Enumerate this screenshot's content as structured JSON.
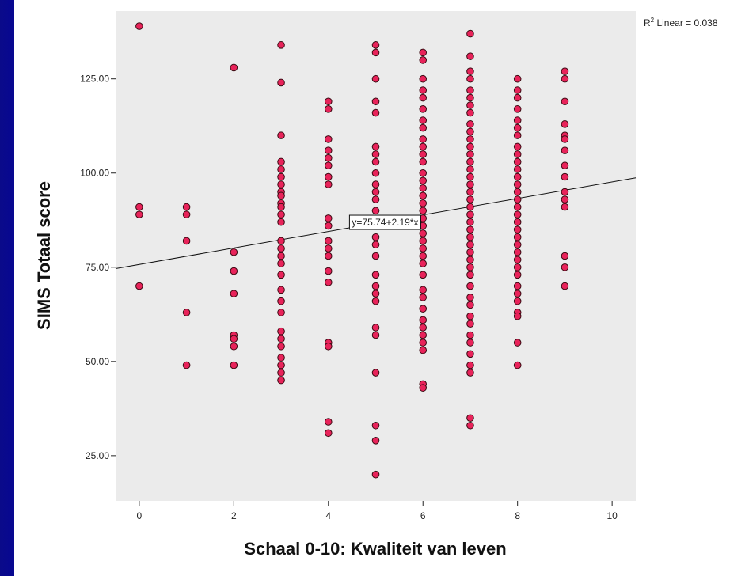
{
  "chart_data": {
    "type": "scatter",
    "title": "",
    "xlabel": "Schaal 0-10: Kwaliteit van leven",
    "ylabel": "SIMS Totaal score",
    "xlim": [
      -0.5,
      10.5
    ],
    "ylim": [
      13,
      143
    ],
    "xticks": [
      0,
      2,
      4,
      6,
      8,
      10
    ],
    "xtick_labels": [
      "0",
      "2",
      "4",
      "6",
      "8",
      "10"
    ],
    "yticks": [
      25,
      50,
      75,
      100,
      125
    ],
    "ytick_labels": [
      "25.00",
      "50.00",
      "75.00",
      "100.00",
      "125.00"
    ],
    "grid": false,
    "marker_color": "#e8235a",
    "fit_line": {
      "intercept": 75.74,
      "slope": 2.19,
      "label": "y=75.74+2.19*x",
      "label_x": 5.2
    },
    "r2_label": {
      "prefix": "R",
      "sup": "2",
      "text": " Linear = 0.038"
    },
    "series": [
      {
        "points": [
          [
            0,
            139
          ],
          [
            0,
            91
          ],
          [
            0,
            89
          ],
          [
            0,
            70
          ],
          [
            1,
            91
          ],
          [
            1,
            89
          ],
          [
            1,
            82
          ],
          [
            1,
            63
          ],
          [
            1,
            49
          ],
          [
            2,
            128
          ],
          [
            2,
            79
          ],
          [
            2,
            74
          ],
          [
            2,
            68
          ],
          [
            2,
            57
          ],
          [
            2,
            56
          ],
          [
            2,
            54
          ],
          [
            2,
            49
          ],
          [
            3,
            134
          ],
          [
            3,
            124
          ],
          [
            3,
            110
          ],
          [
            3,
            103
          ],
          [
            3,
            101
          ],
          [
            3,
            99
          ],
          [
            3,
            97
          ],
          [
            3,
            95
          ],
          [
            3,
            94
          ],
          [
            3,
            92
          ],
          [
            3,
            91
          ],
          [
            3,
            89
          ],
          [
            3,
            87
          ],
          [
            3,
            82
          ],
          [
            3,
            80
          ],
          [
            3,
            78
          ],
          [
            3,
            76
          ],
          [
            3,
            73
          ],
          [
            3,
            69
          ],
          [
            3,
            66
          ],
          [
            3,
            63
          ],
          [
            3,
            58
          ],
          [
            3,
            56
          ],
          [
            3,
            54
          ],
          [
            3,
            51
          ],
          [
            3,
            49
          ],
          [
            3,
            47
          ],
          [
            3,
            45
          ],
          [
            4,
            119
          ],
          [
            4,
            117
          ],
          [
            4,
            109
          ],
          [
            4,
            106
          ],
          [
            4,
            104
          ],
          [
            4,
            102
          ],
          [
            4,
            99
          ],
          [
            4,
            97
          ],
          [
            4,
            88
          ],
          [
            4,
            86
          ],
          [
            4,
            82
          ],
          [
            4,
            80
          ],
          [
            4,
            78
          ],
          [
            4,
            74
          ],
          [
            4,
            71
          ],
          [
            4,
            55
          ],
          [
            4,
            54
          ],
          [
            4,
            34
          ],
          [
            4,
            31
          ],
          [
            5,
            134
          ],
          [
            5,
            132
          ],
          [
            5,
            125
          ],
          [
            5,
            119
          ],
          [
            5,
            116
          ],
          [
            5,
            107
          ],
          [
            5,
            105
          ],
          [
            5,
            103
          ],
          [
            5,
            100
          ],
          [
            5,
            97
          ],
          [
            5,
            95
          ],
          [
            5,
            93
          ],
          [
            5,
            90
          ],
          [
            5,
            87
          ],
          [
            5,
            83
          ],
          [
            5,
            81
          ],
          [
            5,
            78
          ],
          [
            5,
            73
          ],
          [
            5,
            70
          ],
          [
            5,
            68
          ],
          [
            5,
            66
          ],
          [
            5,
            59
          ],
          [
            5,
            57
          ],
          [
            5,
            47
          ],
          [
            5,
            33
          ],
          [
            5,
            29
          ],
          [
            5,
            20
          ],
          [
            6,
            132
          ],
          [
            6,
            130
          ],
          [
            6,
            125
          ],
          [
            6,
            122
          ],
          [
            6,
            120
          ],
          [
            6,
            117
          ],
          [
            6,
            114
          ],
          [
            6,
            112
          ],
          [
            6,
            109
          ],
          [
            6,
            107
          ],
          [
            6,
            105
          ],
          [
            6,
            103
          ],
          [
            6,
            100
          ],
          [
            6,
            98
          ],
          [
            6,
            96
          ],
          [
            6,
            94
          ],
          [
            6,
            92
          ],
          [
            6,
            90
          ],
          [
            6,
            88
          ],
          [
            6,
            86
          ],
          [
            6,
            84
          ],
          [
            6,
            82
          ],
          [
            6,
            80
          ],
          [
            6,
            78
          ],
          [
            6,
            76
          ],
          [
            6,
            73
          ],
          [
            6,
            69
          ],
          [
            6,
            67
          ],
          [
            6,
            64
          ],
          [
            6,
            61
          ],
          [
            6,
            59
          ],
          [
            6,
            57
          ],
          [
            6,
            55
          ],
          [
            6,
            53
          ],
          [
            6,
            44
          ],
          [
            6,
            43
          ],
          [
            7,
            137
          ],
          [
            7,
            131
          ],
          [
            7,
            127
          ],
          [
            7,
            125
          ],
          [
            7,
            122
          ],
          [
            7,
            120
          ],
          [
            7,
            118
          ],
          [
            7,
            116
          ],
          [
            7,
            113
          ],
          [
            7,
            111
          ],
          [
            7,
            109
          ],
          [
            7,
            107
          ],
          [
            7,
            105
          ],
          [
            7,
            103
          ],
          [
            7,
            101
          ],
          [
            7,
            99
          ],
          [
            7,
            97
          ],
          [
            7,
            95
          ],
          [
            7,
            93
          ],
          [
            7,
            91
          ],
          [
            7,
            89
          ],
          [
            7,
            87
          ],
          [
            7,
            85
          ],
          [
            7,
            83
          ],
          [
            7,
            81
          ],
          [
            7,
            79
          ],
          [
            7,
            77
          ],
          [
            7,
            75
          ],
          [
            7,
            73
          ],
          [
            7,
            70
          ],
          [
            7,
            67
          ],
          [
            7,
            65
          ],
          [
            7,
            62
          ],
          [
            7,
            60
          ],
          [
            7,
            57
          ],
          [
            7,
            55
          ],
          [
            7,
            52
          ],
          [
            7,
            49
          ],
          [
            7,
            47
          ],
          [
            7,
            35
          ],
          [
            7,
            33
          ],
          [
            8,
            125
          ],
          [
            8,
            122
          ],
          [
            8,
            120
          ],
          [
            8,
            117
          ],
          [
            8,
            114
          ],
          [
            8,
            112
          ],
          [
            8,
            110
          ],
          [
            8,
            107
          ],
          [
            8,
            105
          ],
          [
            8,
            103
          ],
          [
            8,
            101
          ],
          [
            8,
            99
          ],
          [
            8,
            97
          ],
          [
            8,
            95
          ],
          [
            8,
            93
          ],
          [
            8,
            91
          ],
          [
            8,
            89
          ],
          [
            8,
            87
          ],
          [
            8,
            85
          ],
          [
            8,
            83
          ],
          [
            8,
            81
          ],
          [
            8,
            79
          ],
          [
            8,
            77
          ],
          [
            8,
            75
          ],
          [
            8,
            73
          ],
          [
            8,
            70
          ],
          [
            8,
            68
          ],
          [
            8,
            66
          ],
          [
            8,
            63
          ],
          [
            8,
            62
          ],
          [
            8,
            55
          ],
          [
            8,
            49
          ],
          [
            9,
            127
          ],
          [
            9,
            125
          ],
          [
            9,
            119
          ],
          [
            9,
            113
          ],
          [
            9,
            110
          ],
          [
            9,
            109
          ],
          [
            9,
            106
          ],
          [
            9,
            102
          ],
          [
            9,
            99
          ],
          [
            9,
            95
          ],
          [
            9,
            93
          ],
          [
            9,
            91
          ],
          [
            9,
            78
          ],
          [
            9,
            75
          ],
          [
            9,
            70
          ]
        ]
      }
    ]
  }
}
